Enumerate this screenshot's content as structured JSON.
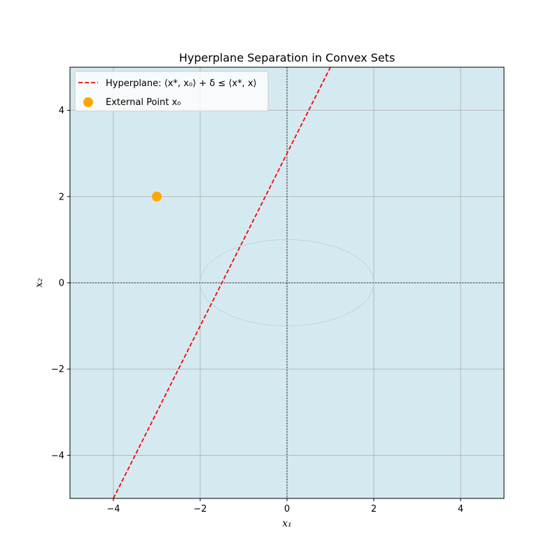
{
  "chart_data": {
    "type": "line",
    "title": "Hyperplane Separation in Convex Sets",
    "xlabel": "x₁",
    "ylabel": "x₂",
    "xlim": [
      -5,
      5
    ],
    "ylim": [
      -5,
      5
    ],
    "xticks": [
      -4,
      -2,
      0,
      2,
      4
    ],
    "yticks": [
      -4,
      -2,
      0,
      2,
      4
    ],
    "xtick_labels": [
      "−4",
      "−2",
      "0",
      "2",
      "4"
    ],
    "ytick_labels": [
      "−4",
      "−2",
      "0",
      "2",
      "4"
    ],
    "grid": true,
    "background_fill": "#d5eaf0",
    "legend_position": "top-left",
    "series": [
      {
        "name": "Hyperplane: ⟨x*, x₀⟩ + δ ≤ ⟨x*, x⟩",
        "kind": "line",
        "style": "dashed",
        "color": "#ff0000",
        "x": [
          -4,
          1
        ],
        "y": [
          -5,
          5
        ]
      },
      {
        "name": "External Point x₀",
        "kind": "scatter",
        "color": "#ffa500",
        "x": [
          -3
        ],
        "y": [
          2
        ]
      }
    ],
    "convex_set": {
      "shape": "ellipse",
      "center": [
        0,
        0
      ],
      "semi_axis_x": 2,
      "semi_axis_y": 1,
      "color": "#a9d4e1"
    },
    "reference_lines": [
      {
        "orientation": "horizontal",
        "value": 0,
        "style": "dotted",
        "color": "#000000"
      },
      {
        "orientation": "vertical",
        "value": 0,
        "style": "dotted",
        "color": "#000000"
      }
    ]
  }
}
